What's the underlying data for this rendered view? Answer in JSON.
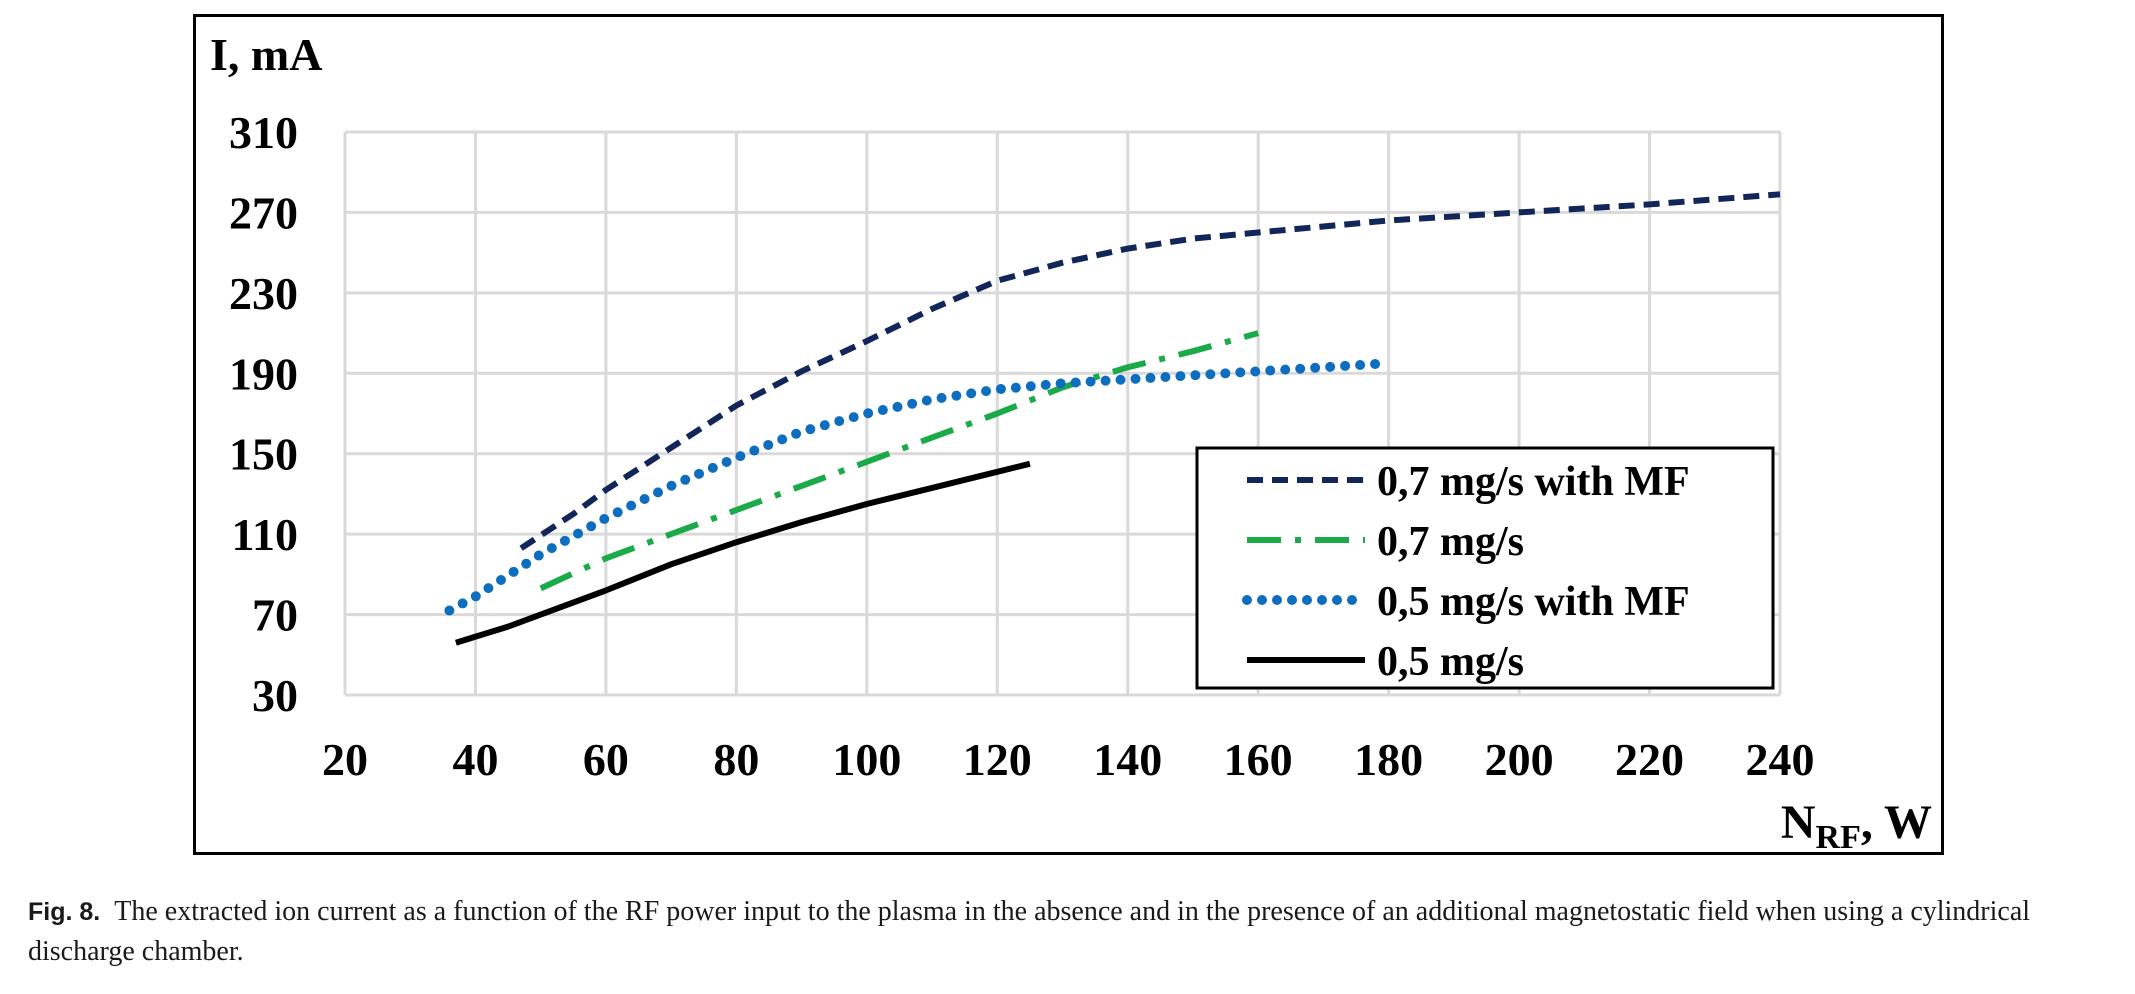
{
  "caption": {
    "label": "Fig. 8.",
    "text": "The extracted ion current as a function of the RF power input to the plasma in the absence and in the presence of an additional magnetostatic field when using a cylindrical discharge chamber."
  },
  "chart_data": {
    "type": "line",
    "title": "",
    "ylabel": "I, mA",
    "xlabel_main": "N",
    "xlabel_sub": "RF",
    "xlabel_tail": ", W",
    "xlim": [
      20,
      240
    ],
    "ylim": [
      30,
      310
    ],
    "xticks": [
      20,
      40,
      60,
      80,
      100,
      120,
      140,
      160,
      180,
      200,
      220,
      240
    ],
    "yticks": [
      30,
      70,
      110,
      150,
      190,
      230,
      270,
      310
    ],
    "grid": true,
    "legend_position": "bottom-right",
    "series": [
      {
        "name": "0,7 mg/s with MF",
        "color": "#13265a",
        "style": "dashed",
        "x": [
          47,
          55,
          60,
          70,
          80,
          90,
          100,
          110,
          120,
          130,
          140,
          150,
          160,
          180,
          200,
          220,
          240
        ],
        "y": [
          103,
          120,
          132,
          153,
          174,
          191,
          206,
          222,
          236,
          245,
          252,
          257,
          260,
          266,
          270,
          274,
          279
        ]
      },
      {
        "name": "0,7 mg/s",
        "color": "#1aab48",
        "style": "dashdot",
        "x": [
          50,
          60,
          70,
          80,
          90,
          100,
          110,
          120,
          130,
          140,
          150,
          160
        ],
        "y": [
          83,
          98,
          110,
          122,
          134,
          146,
          158,
          170,
          183,
          193,
          201,
          210
        ]
      },
      {
        "name": "0,5 mg/s with MF",
        "color": "#0d6ec0",
        "style": "dotted",
        "x": [
          36,
          40,
          50,
          60,
          70,
          80,
          90,
          100,
          110,
          120,
          130,
          140,
          150,
          160,
          170,
          180
        ],
        "y": [
          72,
          79,
          100,
          118,
          134,
          148,
          161,
          170,
          177,
          182,
          185,
          187,
          189,
          191,
          193,
          195
        ]
      },
      {
        "name": "0,5 mg/s",
        "color": "#000000",
        "style": "solid",
        "x": [
          37,
          45,
          50,
          60,
          70,
          80,
          90,
          100,
          110,
          120,
          125
        ],
        "y": [
          56,
          64,
          70,
          82,
          95,
          106,
          116,
          125,
          133,
          141,
          145
        ]
      }
    ]
  }
}
